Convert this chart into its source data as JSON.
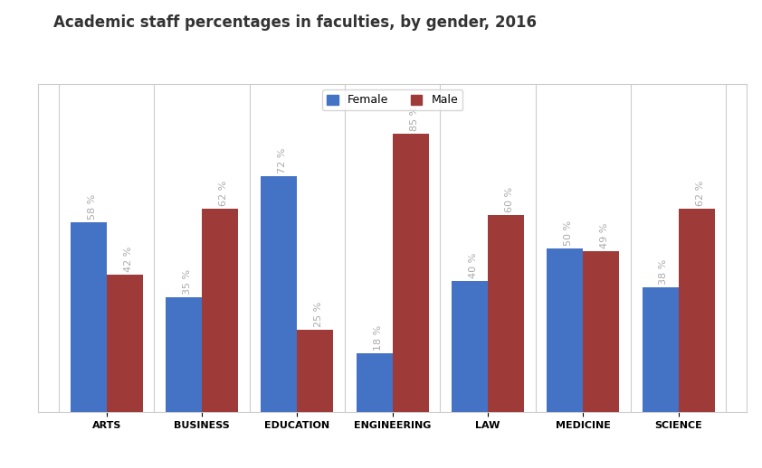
{
  "title": "Academic staff percentages in faculties, by gender, 2016",
  "categories": [
    "ARTS",
    "BUSINESS",
    "EDUCATION",
    "ENGINEERING",
    "LAW",
    "MEDICINE",
    "SCIENCE"
  ],
  "female": [
    58,
    35,
    72,
    18,
    40,
    50,
    38
  ],
  "male": [
    42,
    62,
    25,
    85,
    60,
    49,
    62
  ],
  "female_color": "#4472C4",
  "male_color": "#9E3A38",
  "bar_width": 0.38,
  "ylim": [
    0,
    100
  ],
  "legend_labels": [
    "Female",
    "Male"
  ],
  "title_fontsize": 12,
  "label_fontsize": 8,
  "tick_fontsize": 8,
  "bar_label_color": "#aaaaaa",
  "background_color": "#ffffff",
  "plot_bg_color": "#ffffff",
  "grid_color": "#cccccc",
  "vline_color": "#cccccc"
}
